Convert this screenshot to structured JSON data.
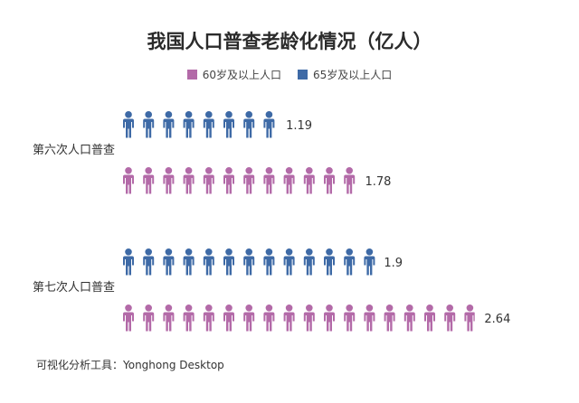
{
  "chart_data": {
    "type": "bar",
    "title": "我国人口普查老龄化情况（亿人）",
    "unit": "亿人",
    "categories": [
      "第六次人口普查",
      "第七次人口普查"
    ],
    "series": [
      {
        "name": "60岁及以上人口",
        "color": "#b36aa8",
        "values": [
          1.78,
          2.64
        ]
      },
      {
        "name": "65岁及以上人口",
        "color": "#3e6aa6",
        "values": [
          1.19,
          1.9
        ]
      }
    ],
    "value_labels": {
      "60": [
        "1.78",
        "2.64"
      ],
      "65": [
        "1.19",
        "1.9"
      ]
    },
    "legend_position": "top-center",
    "grid": false
  },
  "footer": {
    "text": "可视化分析工具：Yonghong Desktop"
  }
}
